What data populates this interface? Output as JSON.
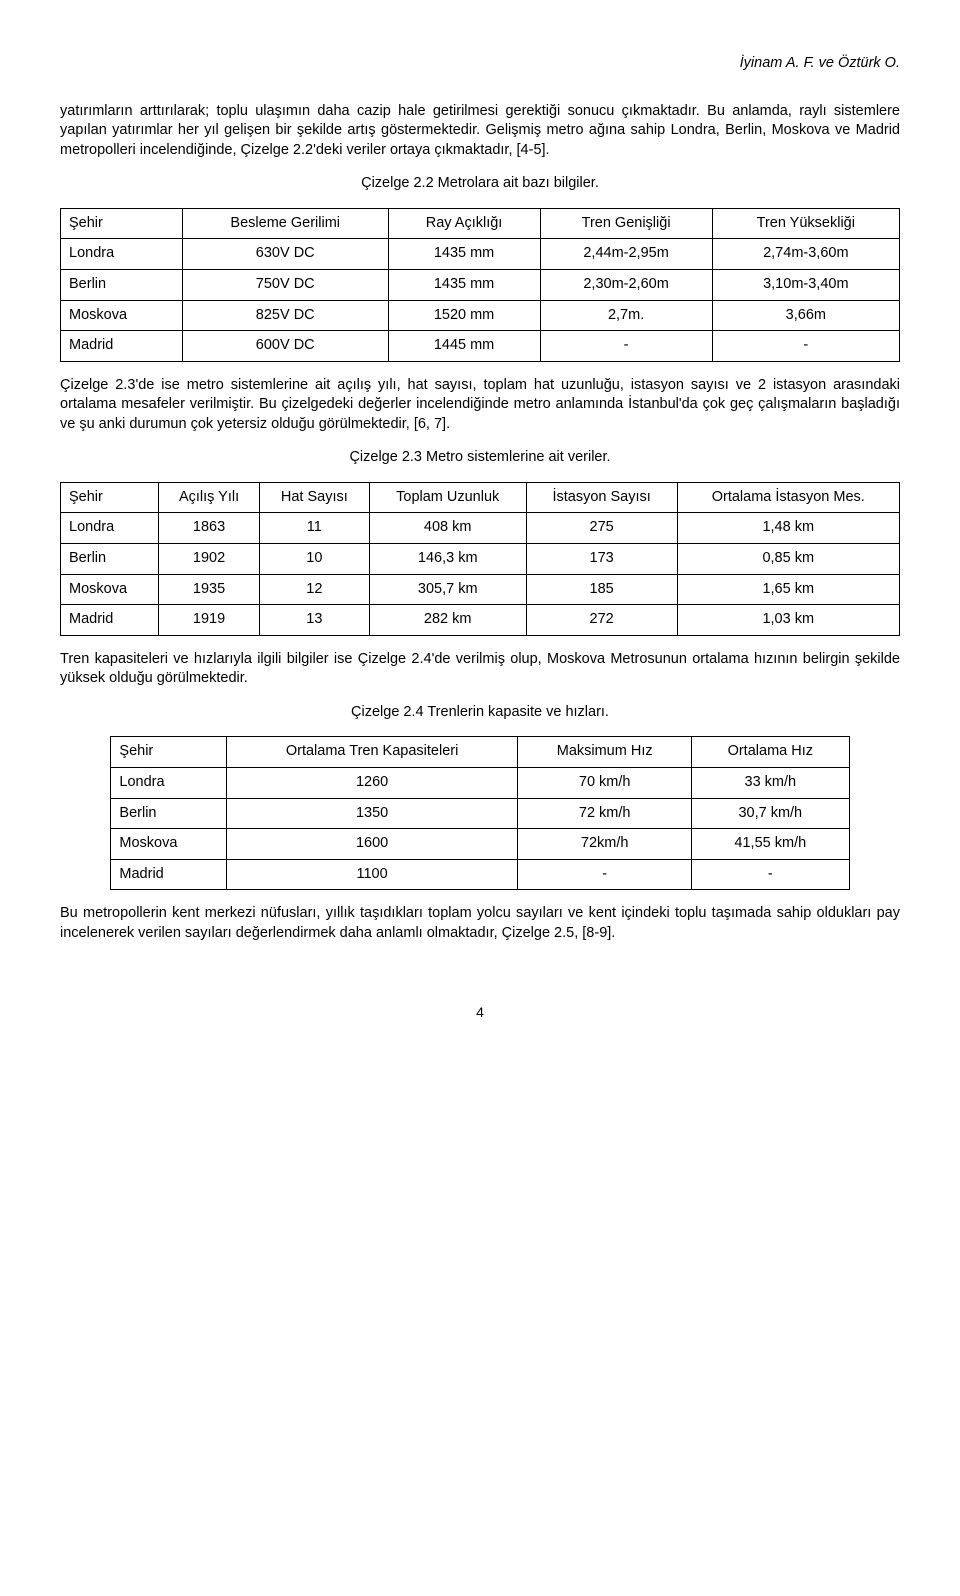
{
  "header": {
    "authors": "İyinam A. F. ve  Öztürk O."
  },
  "para1": "yatırımların arttırılarak; toplu ulaşımın daha cazip hale getirilmesi gerektiği sonucu çıkmaktadır. Bu anlamda, raylı sistemlere yapılan yatırımlar her yıl gelişen bir şekilde artış göstermektedir. Gelişmiş metro ağına sahip Londra, Berlin, Moskova ve Madrid metropolleri incelendiğinde, Çizelge 2.2'deki veriler ortaya çıkmaktadır, [4-5].",
  "caption1": "Çizelge 2.2 Metrolara ait bazı bilgiler.",
  "table1": {
    "columns": [
      "Şehir",
      "Besleme Gerilimi",
      "Ray Açıklığı",
      "Tren Genişliği",
      "Tren Yüksekliği"
    ],
    "rows": [
      [
        "Londra",
        "630V DC",
        "1435 mm",
        "2,44m-2,95m",
        "2,74m-3,60m"
      ],
      [
        "Berlin",
        "750V DC",
        "1435 mm",
        "2,30m-2,60m",
        "3,10m-3,40m"
      ],
      [
        "Moskova",
        "825V DC",
        "1520 mm",
        "2,7m.",
        "3,66m"
      ],
      [
        "Madrid",
        "600V DC",
        "1445 mm",
        "-",
        "-"
      ]
    ]
  },
  "para2": "Çizelge 2.3'de ise metro sistemlerine ait açılış yılı, hat sayısı, toplam hat uzunluğu, istasyon sayısı ve 2 istasyon arasındaki ortalama mesafeler verilmiştir. Bu çizelgedeki değerler incelendiğinde metro anlamında İstanbul'da çok geç çalışmaların başladığı ve şu anki durumun çok yetersiz olduğu görülmektedir, [6, 7].",
  "caption2": "Çizelge 2.3 Metro sistemlerine ait veriler.",
  "table2": {
    "columns": [
      "Şehir",
      "Açılış Yılı",
      "Hat Sayısı",
      "Toplam Uzunluk",
      "İstasyon Sayısı",
      "Ortalama İstasyon Mes."
    ],
    "rows": [
      [
        "Londra",
        "1863",
        "11",
        "408 km",
        "275",
        "1,48 km"
      ],
      [
        "Berlin",
        "1902",
        "10",
        "146,3 km",
        "173",
        "0,85 km"
      ],
      [
        "Moskova",
        "1935",
        "12",
        "305,7 km",
        "185",
        "1,65 km"
      ],
      [
        "Madrid",
        "1919",
        "13",
        "282 km",
        "272",
        "1,03 km"
      ]
    ]
  },
  "para3": "Tren kapasiteleri ve hızlarıyla ilgili bilgiler ise Çizelge 2.4'de verilmiş olup, Moskova Metrosunun ortalama hızının belirgin şekilde yüksek olduğu görülmektedir.",
  "caption3": "Çizelge 2.4 Trenlerin kapasite ve hızları.",
  "table3": {
    "columns": [
      "Şehir",
      "Ortalama Tren Kapasiteleri",
      "Maksimum Hız",
      "Ortalama Hız"
    ],
    "rows": [
      [
        "Londra",
        "1260",
        "70 km/h",
        "33 km/h"
      ],
      [
        "Berlin",
        "1350",
        "72 km/h",
        "30,7 km/h"
      ],
      [
        "Moskova",
        "1600",
        "72km/h",
        "41,55 km/h"
      ],
      [
        "Madrid",
        "1100",
        "-",
        "-"
      ]
    ]
  },
  "para4": "Bu metropollerin kent merkezi nüfusları, yıllık taşıdıkları toplam yolcu sayıları ve kent içindeki toplu taşımada sahip oldukları pay incelenerek verilen sayıları değerlendirmek daha anlamlı olmaktadır, Çizelge 2.5, [8-9].",
  "pageNumber": "4"
}
